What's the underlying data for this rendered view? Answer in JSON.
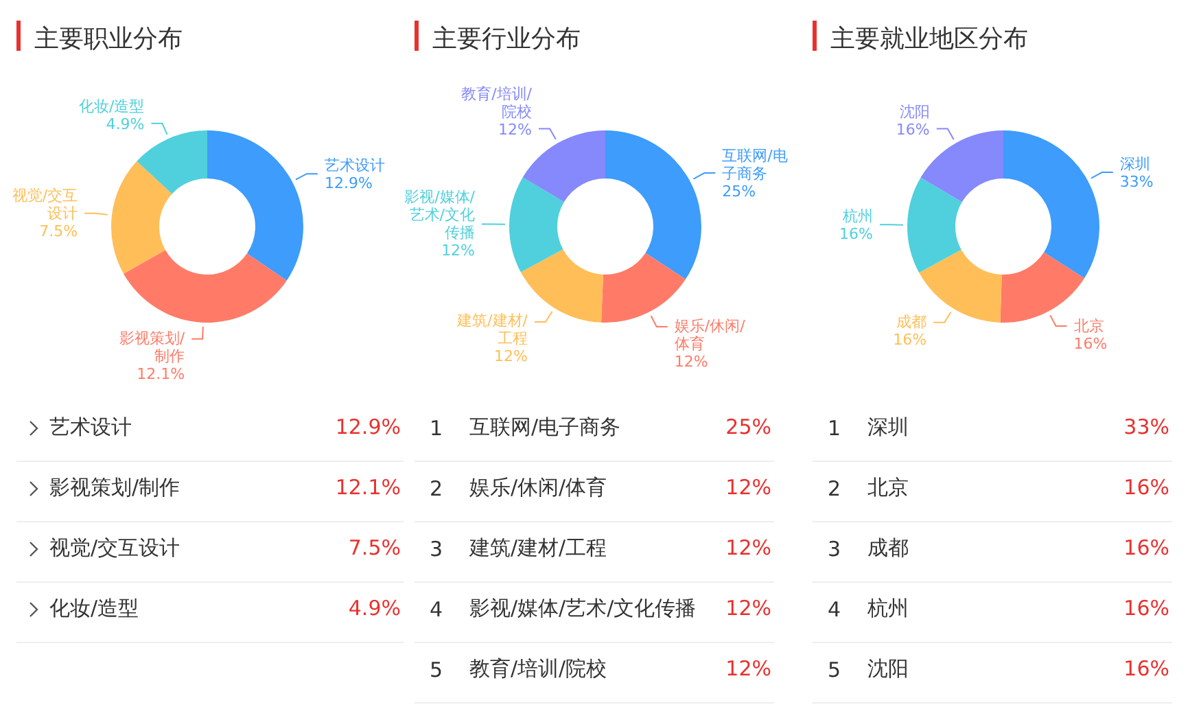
{
  "chart_data": [
    {
      "type": "donut",
      "title": "主要职业分布",
      "categories": [
        "艺术设计",
        "影视策划/制作",
        "视觉/交互设计",
        "化妆/造型"
      ],
      "values": [
        12.9,
        12.1,
        7.5,
        4.9
      ],
      "value_labels": [
        "12.9%",
        "12.1%",
        "7.5%",
        "4.9%"
      ],
      "colors": [
        "#3d9cfc",
        "#ff7b68",
        "#ffbe57",
        "#4fd0dc"
      ]
    },
    {
      "type": "donut",
      "title": "主要行业分布",
      "categories": [
        "互联网/电子商务",
        "娱乐/休闲/体育",
        "建筑/建材/工程",
        "影视/媒体/艺术/文化传播",
        "教育/培训/院校"
      ],
      "values": [
        25,
        12,
        12,
        12,
        12
      ],
      "value_labels": [
        "25%",
        "12%",
        "12%",
        "12%",
        "12%"
      ],
      "annotations": [
        "1",
        "2",
        "3",
        "4",
        "5"
      ],
      "colors": [
        "#3d9cfc",
        "#ff7b68",
        "#ffbe57",
        "#4fd0dc",
        "#8589fb"
      ]
    },
    {
      "type": "donut",
      "title": "主要就业地区分布",
      "categories": [
        "深圳",
        "北京",
        "成都",
        "杭州",
        "沈阳"
      ],
      "values": [
        33,
        16,
        16,
        16,
        16
      ],
      "value_labels": [
        "33%",
        "16%",
        "16%",
        "16%",
        "16%"
      ],
      "annotations": [
        "1",
        "2",
        "3",
        "4",
        "5"
      ],
      "colors": [
        "#3d9cfc",
        "#ff7b68",
        "#ffbe57",
        "#4fd0dc",
        "#8589fb"
      ]
    }
  ]
}
